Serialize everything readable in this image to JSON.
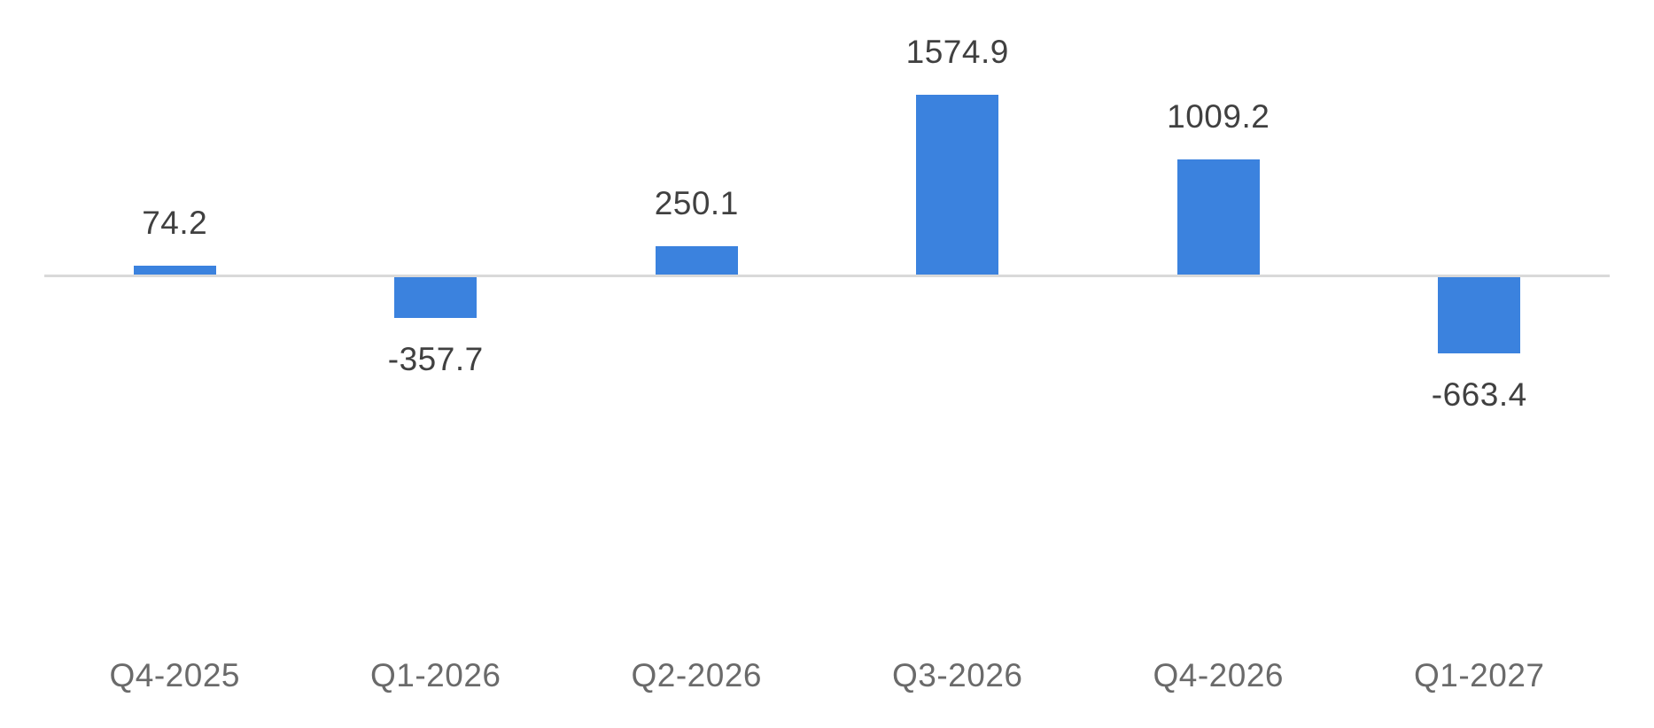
{
  "chart_data": {
    "type": "bar",
    "categories": [
      "Q4-2025",
      "Q1-2026",
      "Q2-2026",
      "Q3-2026",
      "Q4-2026",
      "Q1-2027"
    ],
    "values": [
      74.2,
      -357.7,
      250.1,
      1574.9,
      1009.2,
      -663.4
    ],
    "data_labels": [
      "74.2",
      "-357.7",
      "250.1",
      "1574.9",
      "1009.2",
      "-663.4"
    ],
    "title": "",
    "xlabel": "",
    "ylabel": "",
    "ylim": [
      -663.4,
      1574.9
    ],
    "grid": false,
    "legend": "none",
    "y_axis_visible": false,
    "baseline_at_zero": true,
    "colors": {
      "bar": "#3b82de",
      "baseline": "#d9d9d9",
      "value_label": "#404040",
      "category_label": "#6a6a6a",
      "background": "#ffffff"
    }
  }
}
